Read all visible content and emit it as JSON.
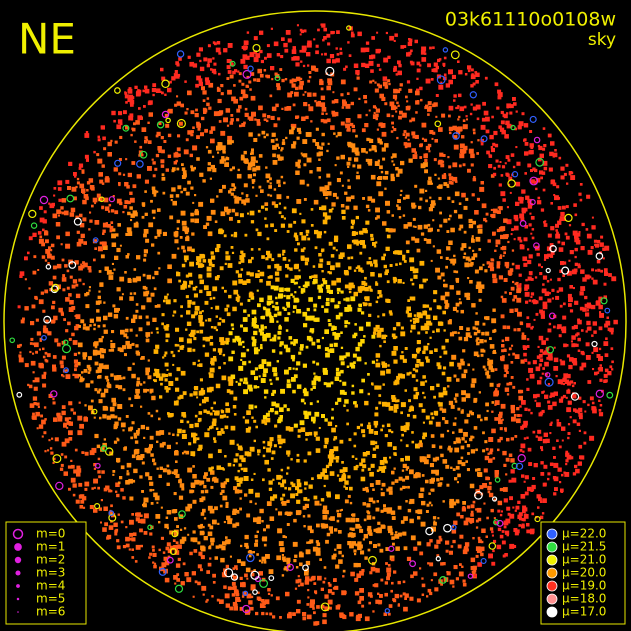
{
  "header": {
    "direction": "NE",
    "image_id": "03k61110o0108w",
    "mode": "sky"
  },
  "magnitude_legend": {
    "items": [
      "m=0",
      "m=1",
      "m=2",
      "m=3",
      "m=4",
      "m=5",
      "m=6"
    ],
    "color": "#e020e0"
  },
  "brightness_legend": {
    "items": [
      {
        "label": "μ=22.0",
        "color": "#3060ff"
      },
      {
        "label": "μ=21.5",
        "color": "#30e040"
      },
      {
        "label": "μ=21.0",
        "color": "#f0f000"
      },
      {
        "label": "μ=20.0",
        "color": "#ff9a00"
      },
      {
        "label": "μ=19.0",
        "color": "#ff3020"
      },
      {
        "label": "μ=18.0",
        "color": "#ff9090"
      },
      {
        "label": "μ=17.0",
        "color": "#ffffff"
      }
    ]
  }
}
